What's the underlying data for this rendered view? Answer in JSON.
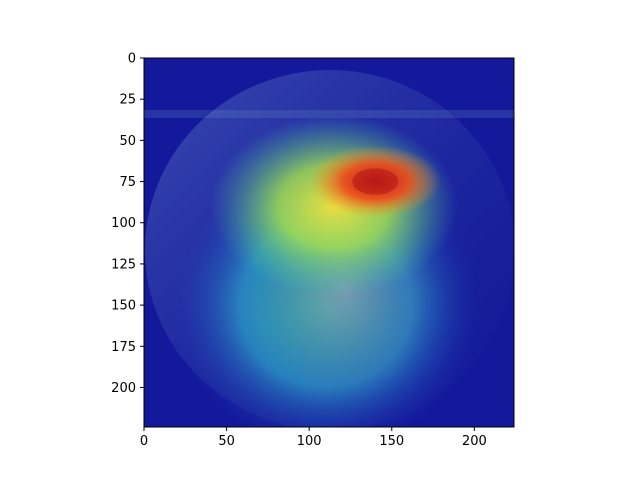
{
  "chart_data": {
    "type": "heatmap",
    "title": "",
    "xlabel": "",
    "ylabel": "",
    "description": "Grad-CAM style jet heatmap overlaid on a grayscale face photo",
    "xlim": [
      0,
      224
    ],
    "ylim": [
      224,
      0
    ],
    "x_ticks": [
      0,
      50,
      100,
      150,
      200
    ],
    "x_tick_labels": [
      "0",
      "50",
      "100",
      "150",
      "200"
    ],
    "y_ticks": [
      0,
      25,
      50,
      75,
      100,
      125,
      150,
      175,
      200
    ],
    "y_tick_labels": [
      "0",
      "25",
      "50",
      "75",
      "100",
      "125",
      "150",
      "175",
      "200"
    ],
    "colormap": "jet",
    "hotspot": {
      "x": 140,
      "y": 75,
      "intensity": 1.0
    },
    "activation_regions": [
      {
        "x": 140,
        "y": 75,
        "rx": 40,
        "ry": 22,
        "level": "high"
      },
      {
        "x": 115,
        "y": 90,
        "rx": 75,
        "ry": 55,
        "level": "medium"
      },
      {
        "x": 110,
        "y": 150,
        "rx": 95,
        "ry": 90,
        "level": "low"
      }
    ]
  }
}
